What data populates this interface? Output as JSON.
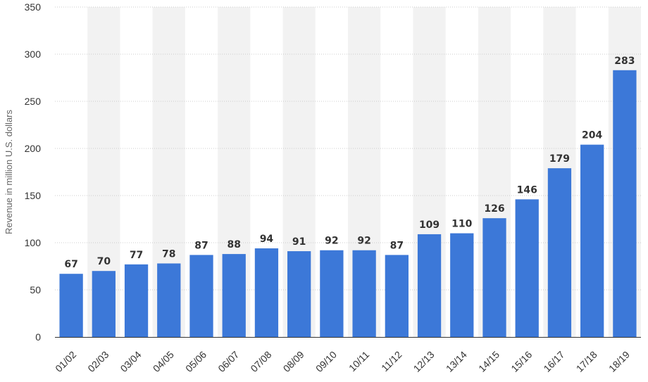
{
  "chart_data": {
    "type": "bar",
    "categories": [
      "01/02",
      "02/03",
      "03/04",
      "04/05",
      "05/06",
      "06/07",
      "07/08",
      "08/09",
      "09/10",
      "10/11",
      "11/12",
      "12/13",
      "13/14",
      "14/15",
      "15/16",
      "16/17",
      "17/18",
      "18/19"
    ],
    "values": [
      67,
      70,
      77,
      78,
      87,
      88,
      94,
      91,
      92,
      92,
      87,
      109,
      110,
      126,
      146,
      179,
      204,
      283
    ],
    "title": "",
    "xlabel": "",
    "ylabel": "Revenue in million U.S. dollars",
    "ylim": [
      0,
      350
    ],
    "yticks": [
      0,
      50,
      100,
      150,
      200,
      250,
      300,
      350
    ],
    "grid": true,
    "bar_color": "#3c78d8",
    "band_color": "#f2f2f2"
  }
}
